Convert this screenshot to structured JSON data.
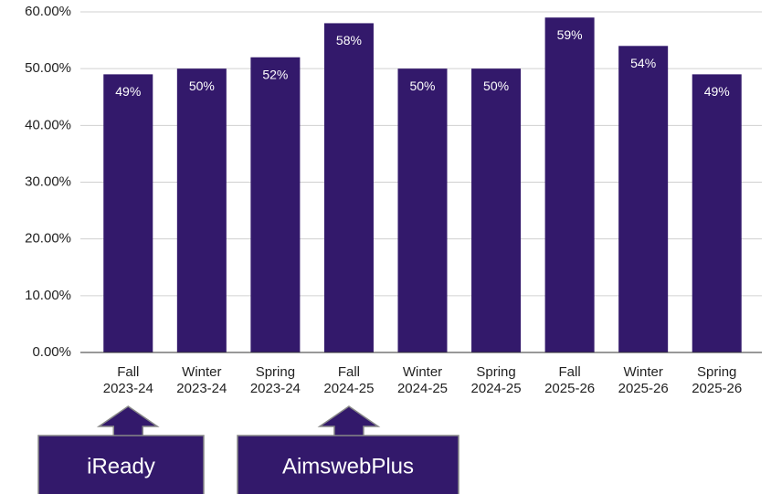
{
  "chart_data": {
    "type": "bar",
    "categories": [
      "Fall 2023-24",
      "Winter 2023-24",
      "Spring 2023-24",
      "Fall 2024-25",
      "Winter 2024-25",
      "Spring 2024-25",
      "Fall 2025-26",
      "Winter 2025-26",
      "Spring 2025-26"
    ],
    "values": [
      49,
      50,
      52,
      58,
      50,
      50,
      59,
      54,
      49
    ],
    "value_labels": [
      "49%",
      "50%",
      "52%",
      "58%",
      "50%",
      "50%",
      "59%",
      "54%",
      "49%"
    ],
    "color": "#33196b",
    "ylim": [
      0,
      60
    ],
    "yticks": [
      {
        "value": 0,
        "label": "0.00%"
      },
      {
        "value": 10,
        "label": "10.00%"
      },
      {
        "value": 20,
        "label": "20.00%"
      },
      {
        "value": 30,
        "label": "30.00%"
      },
      {
        "value": 40,
        "label": "40.00%"
      },
      {
        "value": 50,
        "label": "50.00%"
      },
      {
        "value": 60,
        "label": "60.00%"
      }
    ],
    "grid": true,
    "annotations": [
      "iReady",
      "AimswebPlus"
    ]
  }
}
